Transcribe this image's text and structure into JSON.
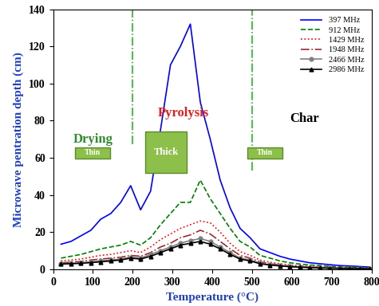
{
  "chart_data": {
    "type": "line",
    "x_label": "Temperature (°C)",
    "y_label": "Microwave pentration depth (cm)",
    "x": [
      20,
      45,
      70,
      95,
      120,
      145,
      170,
      195,
      220,
      245,
      270,
      295,
      320,
      345,
      370,
      395,
      420,
      445,
      470,
      495,
      520,
      545,
      570,
      595,
      620,
      645,
      670,
      695,
      720,
      745,
      770,
      795
    ],
    "series": [
      {
        "name": "397 MHz",
        "color": "#0000ff",
        "line_style": "solid",
        "marker": "none",
        "values": [
          13.5,
          15,
          18,
          21,
          27,
          30,
          36,
          45,
          32,
          42,
          75,
          110,
          120,
          132,
          90,
          70,
          48,
          33,
          22,
          17,
          11,
          9,
          7,
          5.5,
          4.5,
          3.5,
          3,
          2.5,
          2,
          1.8,
          1.5,
          1.2
        ]
      },
      {
        "name": "912 MHz",
        "color": "#008000",
        "line_style": "dashed",
        "marker": "none",
        "values": [
          6,
          7,
          8,
          9.5,
          11,
          12,
          13,
          15,
          13,
          17,
          24,
          30,
          36,
          36,
          48,
          38,
          30,
          22,
          15,
          12,
          7.5,
          6,
          4.5,
          3.5,
          2.8,
          2.3,
          2,
          1.6,
          1.3,
          1.2,
          1,
          0.8
        ]
      },
      {
        "name": "1429 MHz",
        "color": "#ff0000",
        "line_style": "dotted",
        "marker": "none",
        "values": [
          4.5,
          5,
          5.5,
          6.5,
          7.5,
          8,
          9,
          10,
          9,
          12,
          16,
          19,
          22,
          24,
          26,
          25,
          20,
          14,
          9.5,
          7.5,
          5,
          3.8,
          3,
          2.3,
          1.8,
          1.5,
          1.2,
          1,
          0.9,
          0.8,
          0.7,
          0.6
        ]
      },
      {
        "name": "1948 MHz",
        "color": "#a0282d",
        "line_style": "dashdot",
        "marker": "none",
        "values": [
          3.5,
          3.8,
          4.2,
          5,
          5.5,
          6,
          6.5,
          7.5,
          7,
          9,
          12,
          14,
          17,
          18.5,
          21,
          19,
          15,
          11,
          7.5,
          6,
          4,
          3,
          2.3,
          1.8,
          1.4,
          1.2,
          1,
          0.8,
          0.7,
          0.6,
          0.5,
          0.5
        ]
      },
      {
        "name": "2466 MHz",
        "color": "#808080",
        "line_style": "solid",
        "marker": "circle",
        "values": [
          3,
          3.2,
          3.5,
          4,
          4.5,
          5,
          5.5,
          6.5,
          6,
          8,
          10,
          12,
          14,
          15.5,
          16.5,
          15,
          12,
          9,
          6,
          5,
          3.3,
          2.5,
          2,
          1.5,
          1.2,
          1,
          0.8,
          0.7,
          0.6,
          0.5,
          0.4,
          0.4
        ]
      },
      {
        "name": "2986 MHz",
        "color": "#000000",
        "line_style": "solid",
        "marker": "triangle",
        "values": [
          2.8,
          3,
          3.2,
          3.6,
          4,
          4.5,
          5,
          6,
          5.5,
          7,
          9,
          11,
          13,
          14,
          15,
          13.5,
          11,
          8,
          5.5,
          4.5,
          3,
          2.3,
          1.8,
          1.4,
          1.1,
          0.9,
          0.7,
          0.6,
          0.5,
          0.4,
          0.4,
          0.3
        ]
      }
    ],
    "phase_boundaries": [
      200,
      500
    ],
    "annotations": [
      "Drying",
      "Pyrolysis",
      "Char",
      "Thin",
      "Thick",
      "Thin"
    ],
    "xlim": [
      0,
      800
    ],
    "xticks": [
      0,
      100,
      200,
      300,
      400,
      500,
      600,
      700,
      800
    ],
    "ylim": [
      0,
      140
    ],
    "yticks": [
      0,
      20,
      40,
      60,
      80,
      100,
      120,
      140
    ],
    "grid": false,
    "legend": "upper right"
  }
}
